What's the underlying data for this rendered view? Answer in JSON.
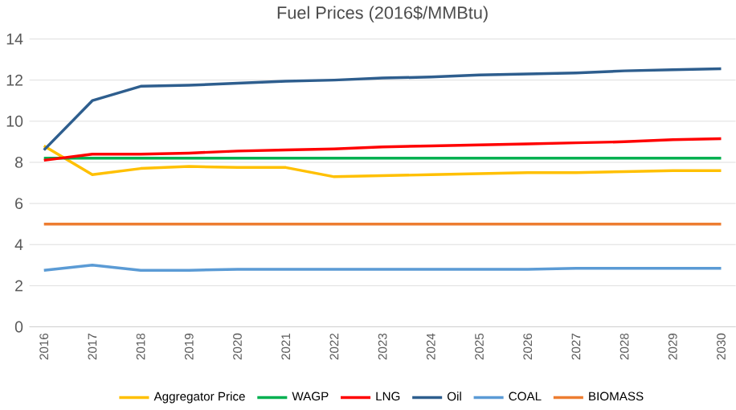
{
  "chart_data": {
    "type": "line",
    "title": "Fuel Prices (2016$/MMBtu)",
    "categories": [
      "2016",
      "2017",
      "2018",
      "2019",
      "2020",
      "2021",
      "2022",
      "2023",
      "2024",
      "2025",
      "2026",
      "2027",
      "2028",
      "2029",
      "2030"
    ],
    "series": [
      {
        "name": "Aggregator Price",
        "color": "#ffc000",
        "values": [
          8.8,
          7.4,
          7.7,
          7.8,
          7.75,
          7.75,
          7.3,
          7.35,
          7.4,
          7.45,
          7.5,
          7.5,
          7.55,
          7.6,
          7.6
        ]
      },
      {
        "name": "WAGP",
        "color": "#00b050",
        "values": [
          8.2,
          8.2,
          8.2,
          8.2,
          8.2,
          8.2,
          8.2,
          8.2,
          8.2,
          8.2,
          8.2,
          8.2,
          8.2,
          8.2,
          8.2
        ]
      },
      {
        "name": "LNG",
        "color": "#ff0000",
        "values": [
          8.1,
          8.4,
          8.4,
          8.45,
          8.55,
          8.6,
          8.65,
          8.75,
          8.8,
          8.85,
          8.9,
          8.95,
          9.0,
          9.1,
          9.15
        ]
      },
      {
        "name": "Oil",
        "color": "#2e5e8e",
        "values": [
          8.6,
          11.0,
          11.7,
          11.75,
          11.85,
          11.95,
          12.0,
          12.1,
          12.15,
          12.25,
          12.3,
          12.35,
          12.45,
          12.5,
          12.55
        ]
      },
      {
        "name": "COAL",
        "color": "#5b9bd5",
        "values": [
          2.75,
          3.0,
          2.75,
          2.75,
          2.8,
          2.8,
          2.8,
          2.8,
          2.8,
          2.8,
          2.8,
          2.85,
          2.85,
          2.85,
          2.85
        ]
      },
      {
        "name": "BIOMASS",
        "color": "#ed7d31",
        "values": [
          5,
          5,
          5,
          5,
          5,
          5,
          5,
          5,
          5,
          5,
          5,
          5,
          5,
          5,
          5
        ]
      }
    ],
    "ylim": [
      0,
      14
    ],
    "yticks": [
      0,
      2,
      4,
      6,
      8,
      10,
      12,
      14
    ],
    "grid": "y",
    "legend": "bottom",
    "marker": "none",
    "line_style": "solid"
  }
}
